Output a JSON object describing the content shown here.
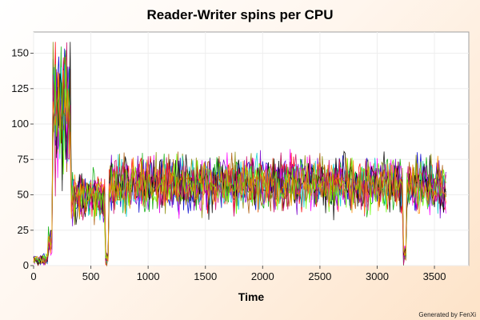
{
  "chart_data": {
    "type": "line",
    "title": "Reader-Writer spins per CPU",
    "xlabel": "Time",
    "ylabel": "",
    "xlim": [
      0,
      3800
    ],
    "ylim": [
      0,
      165
    ],
    "x_ticks": [
      0,
      500,
      1000,
      1500,
      2000,
      2500,
      3000,
      3500
    ],
    "y_ticks": [
      0,
      25,
      50,
      75,
      100,
      125,
      150
    ],
    "grid": true,
    "legend": "none",
    "colors": [
      "#0000cc",
      "#ff0000",
      "#00aa00",
      "#ff00ff",
      "#888800",
      "#00cccc",
      "#aa5500",
      "#7700cc",
      "#000000",
      "#cc0066",
      "#66ff00",
      "#ff8800"
    ],
    "series_profile": {
      "x_step": 10,
      "segments": [
        {
          "x": [
            0,
            120
          ],
          "mean": 4,
          "spread": 3
        },
        {
          "x": [
            120,
            165
          ],
          "mean": 15,
          "spread": 8
        },
        {
          "x": [
            165,
            320
          ],
          "mean": 110,
          "spread": 35
        },
        {
          "x": [
            320,
            620
          ],
          "mean": 48,
          "spread": 12
        },
        {
          "x": [
            620,
            650
          ],
          "mean": 5,
          "spread": 5
        },
        {
          "x": [
            650,
            3220
          ],
          "mean": 58,
          "spread": 14
        },
        {
          "x": [
            3220,
            3250
          ],
          "mean": 8,
          "spread": 6
        },
        {
          "x": [
            3250,
            3600
          ],
          "mean": 57,
          "spread": 14
        }
      ]
    },
    "credit": "Generated by FenXi"
  }
}
